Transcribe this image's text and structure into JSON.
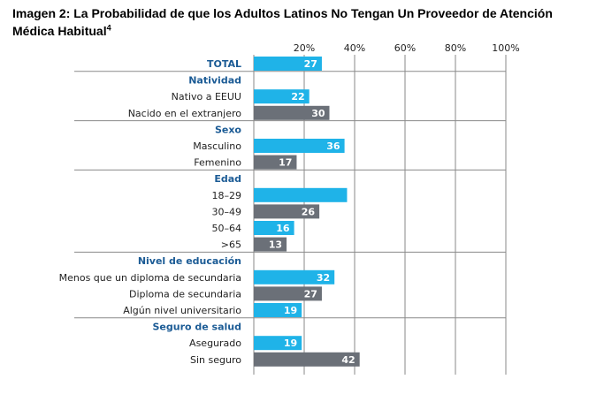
{
  "title": {
    "text": "Imagen 2: La Probabilidad de que los Adultos Latinos No Tengan Un Proveedor de Atención Médica Habitual",
    "footnote": "4"
  },
  "colors": {
    "blue": "#1fb3e8",
    "gray": "#6b7078",
    "header": "#1b5b95",
    "grid": "#8a8a8a"
  },
  "chart_data": {
    "type": "bar",
    "orientation": "horizontal",
    "xlim": [
      0,
      100
    ],
    "ticks": [
      "20%",
      "40%",
      "60%",
      "80%",
      "100%"
    ],
    "tick_values": [
      20,
      40,
      60,
      80,
      100
    ],
    "grid": true,
    "rows": [
      {
        "kind": "total",
        "label": "TOTAL",
        "value": 27,
        "value_label": "27",
        "color": "blue"
      },
      {
        "kind": "header",
        "label": "Natividad"
      },
      {
        "kind": "bar",
        "label": "Nativo a EEUU",
        "value": 22,
        "value_label": "22",
        "color": "blue"
      },
      {
        "kind": "bar",
        "label": "Nacido en el extranjero",
        "value": 30,
        "value_label": "30",
        "color": "gray"
      },
      {
        "kind": "header",
        "label": "Sexo"
      },
      {
        "kind": "bar",
        "label": "Masculino",
        "value": 36,
        "value_label": "36",
        "color": "blue"
      },
      {
        "kind": "bar",
        "label": "Femenino",
        "value": 17,
        "value_label": "17",
        "color": "gray"
      },
      {
        "kind": "header",
        "label": "Edad"
      },
      {
        "kind": "bar",
        "label": "18–29",
        "value": 37,
        "value_label": "",
        "color": "blue"
      },
      {
        "kind": "bar",
        "label": "30–49",
        "value": 26,
        "value_label": "26",
        "color": "gray"
      },
      {
        "kind": "bar",
        "label": "50–64",
        "value": 16,
        "value_label": "16",
        "color": "blue"
      },
      {
        "kind": "bar",
        "label": ">65",
        "value": 13,
        "value_label": "13",
        "color": "gray"
      },
      {
        "kind": "header",
        "label": "Nivel de educación"
      },
      {
        "kind": "bar",
        "label": "Menos que un diploma de secundaria",
        "value": 32,
        "value_label": "32",
        "color": "blue"
      },
      {
        "kind": "bar",
        "label": "Diploma de secundaria",
        "value": 27,
        "value_label": "27",
        "color": "gray"
      },
      {
        "kind": "bar",
        "label": "Algún nivel universitario",
        "value": 19,
        "value_label": "19",
        "color": "blue"
      },
      {
        "kind": "header",
        "label": "Seguro de salud"
      },
      {
        "kind": "bar",
        "label": "Asegurado",
        "value": 19,
        "value_label": "19",
        "color": "blue"
      },
      {
        "kind": "bar",
        "label": "Sin seguro",
        "value": 42,
        "value_label": "42",
        "color": "gray"
      }
    ]
  }
}
